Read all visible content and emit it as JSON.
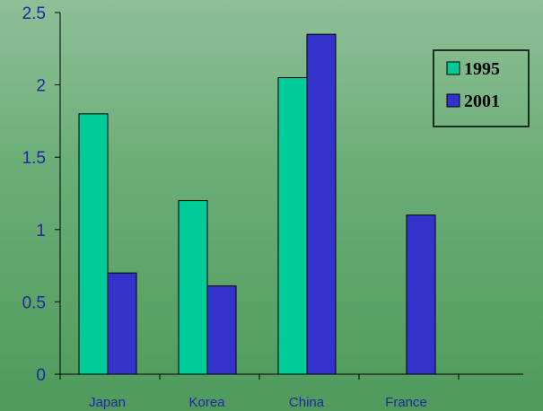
{
  "chart_data": {
    "type": "bar",
    "title": "",
    "xlabel": "",
    "ylabel": "",
    "categories": [
      "Japan",
      "Korea",
      "China",
      "France"
    ],
    "series": [
      {
        "name": "1995",
        "color": "#00cc99",
        "values": [
          1.8,
          1.2,
          2.05,
          null
        ]
      },
      {
        "name": "2001",
        "color": "#3333cc",
        "values": [
          0.7,
          0.61,
          2.35,
          1.1
        ]
      }
    ],
    "ylim": [
      0,
      2.5
    ],
    "yticks": [
      "0",
      "0.5",
      "1",
      "1.5",
      "2",
      "2.5"
    ],
    "grid": false,
    "legend": "top-right"
  }
}
